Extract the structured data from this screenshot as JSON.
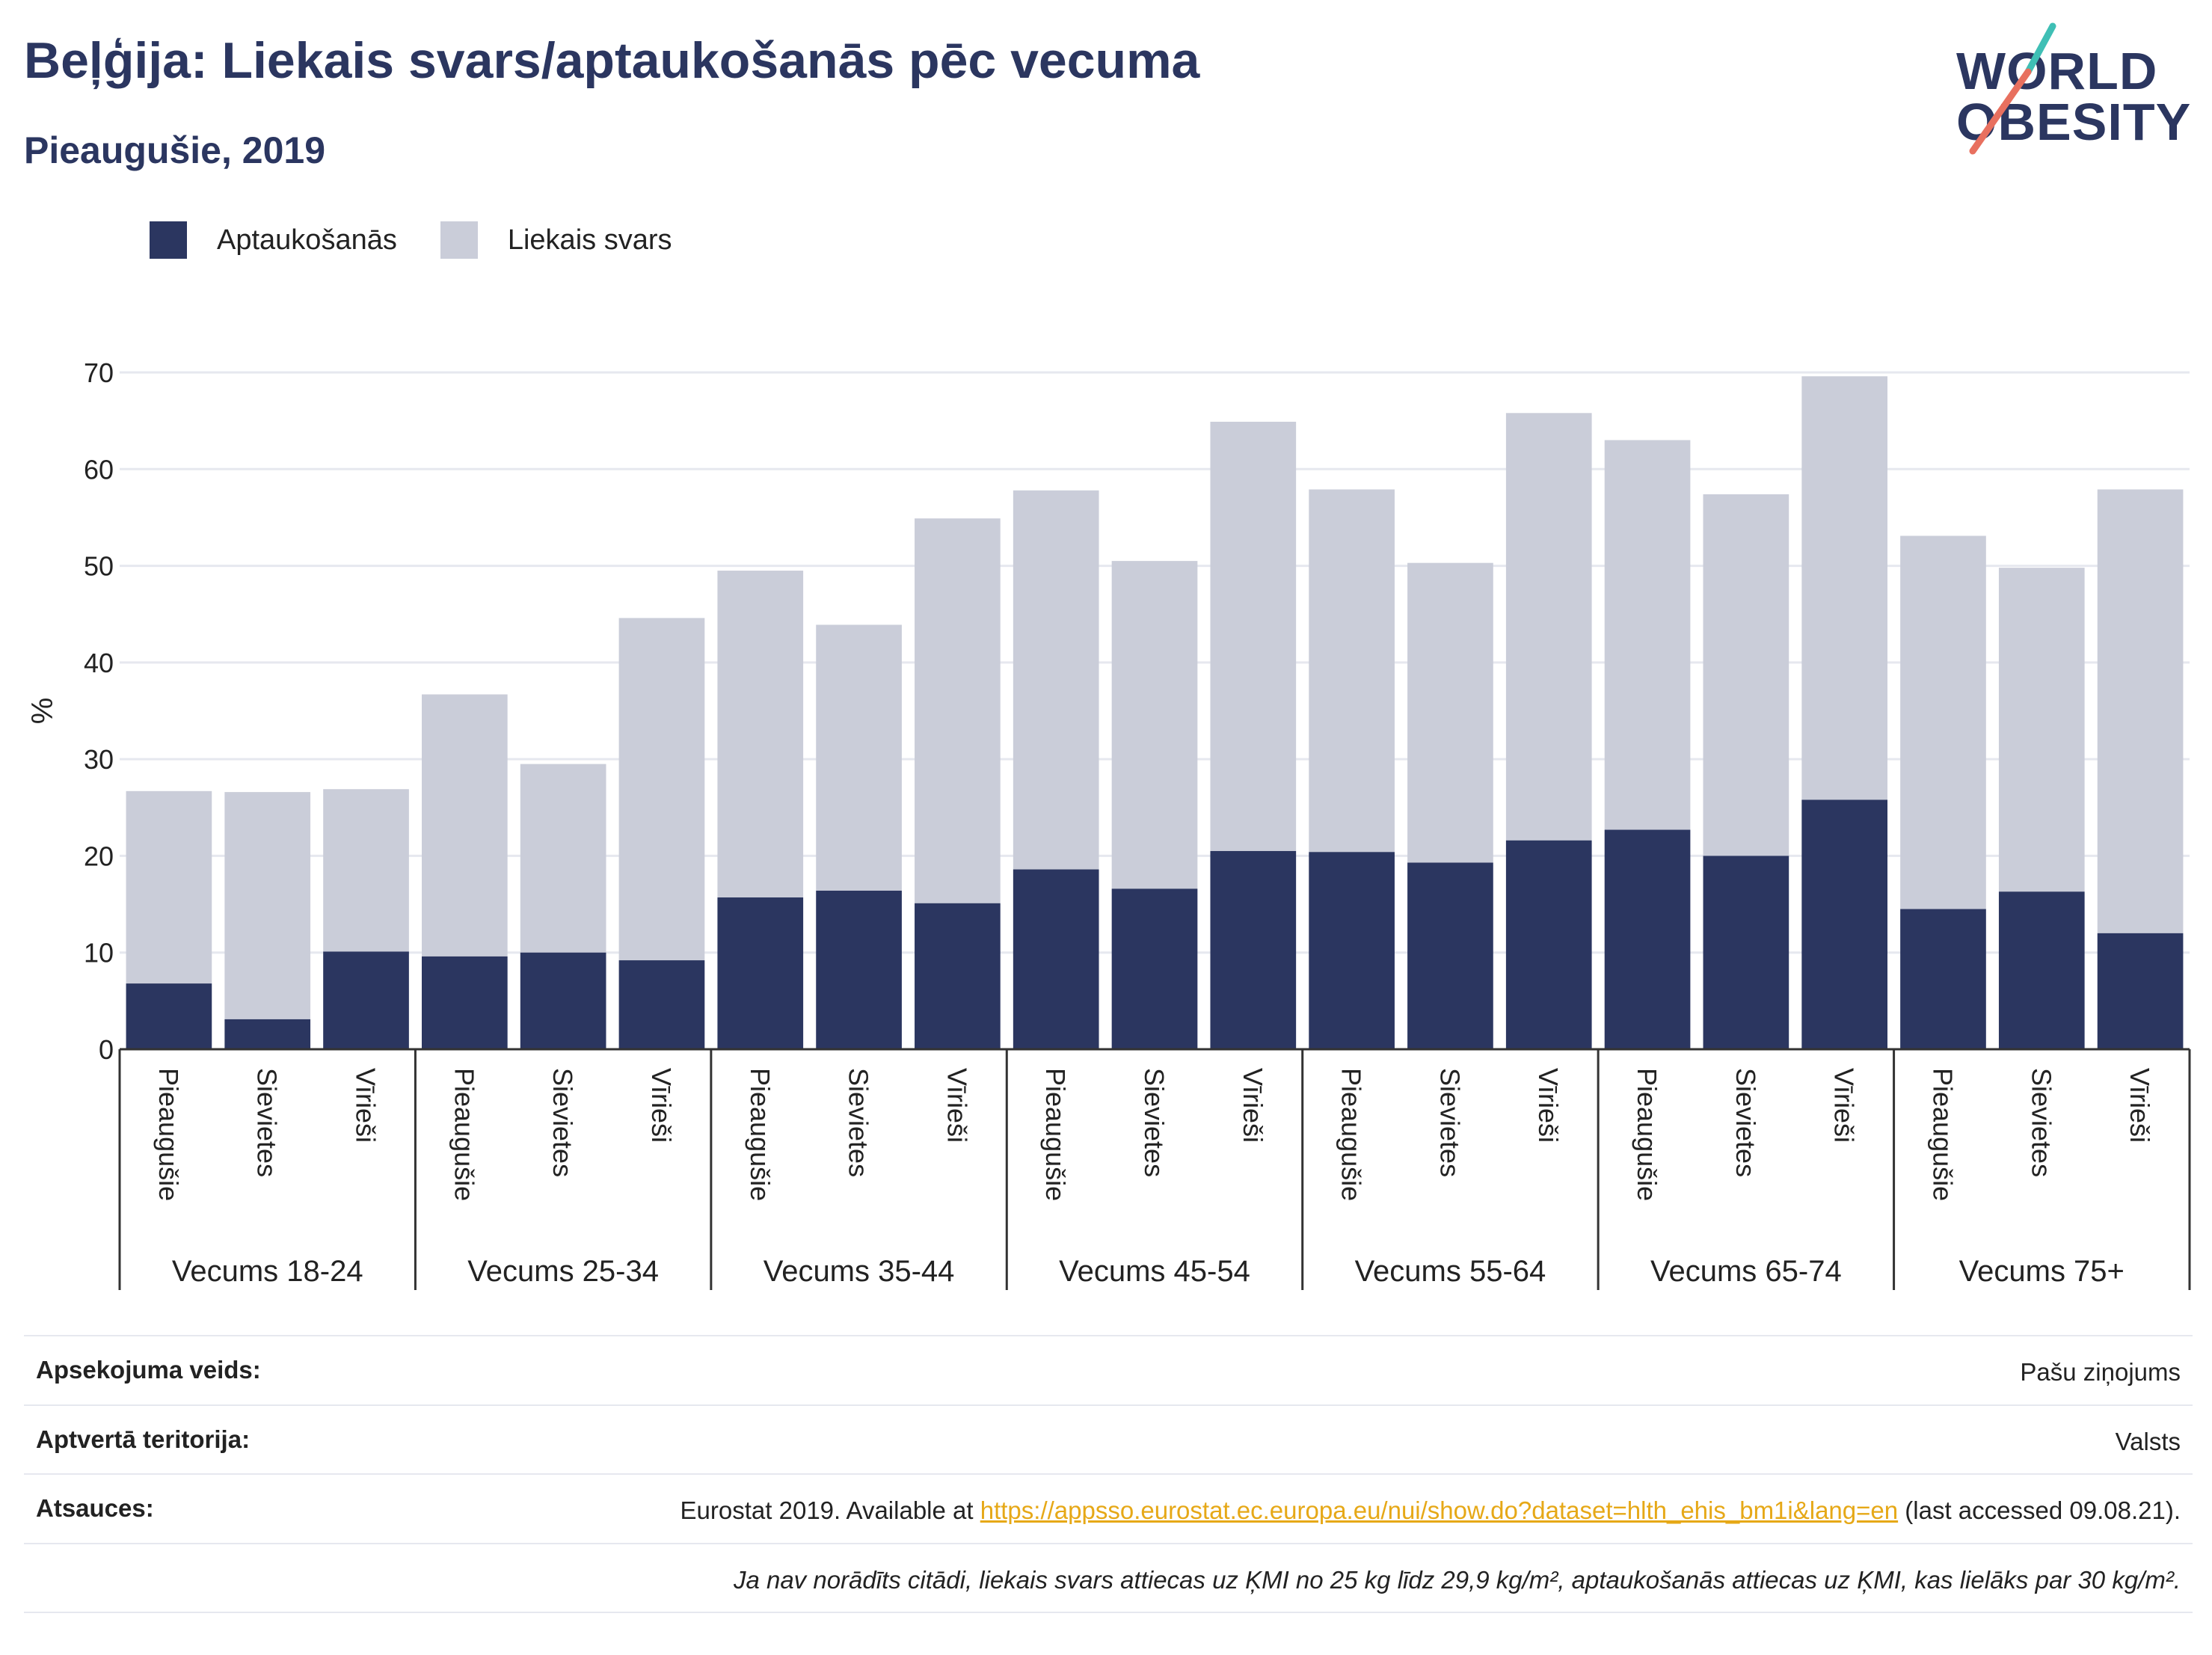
{
  "header": {
    "title": "Beļģija: Liekais svars/aptaukošanās pēc vecuma",
    "subtitle": "Pieaugušie, 2019"
  },
  "logo": {
    "line1": "WORLD",
    "line2": "OBESITY"
  },
  "legend": [
    {
      "label": "Aptaukošanās",
      "color": "#2b3660"
    },
    {
      "label": "Liekais svars",
      "color": "#cacdd9"
    }
  ],
  "chart_data": {
    "type": "bar",
    "stacked": true,
    "ylabel": "%",
    "ylim": [
      0,
      70
    ],
    "yticks": [
      0,
      10,
      20,
      30,
      40,
      50,
      60,
      70
    ],
    "grid": true,
    "legend_position": "top-left",
    "groups": [
      "Vecums 18-24",
      "Vecums 25-34",
      "Vecums 35-44",
      "Vecums 45-54",
      "Vecums 55-64",
      "Vecums 65-74",
      "Vecums 75+"
    ],
    "subcategories": [
      "Pieaugušie",
      "Sievietes",
      "Vīrieši"
    ],
    "series": [
      {
        "name": "Aptaukošanās",
        "color": "#2b3660",
        "values": [
          6.8,
          3.1,
          10.1,
          9.6,
          10.0,
          9.2,
          15.7,
          16.4,
          15.1,
          18.6,
          16.6,
          20.5,
          20.4,
          19.3,
          21.6,
          22.7,
          20.0,
          25.8,
          14.5,
          16.3,
          12.0
        ]
      },
      {
        "name": "Liekais svars",
        "color": "#cacdd9",
        "values": [
          19.9,
          23.5,
          16.8,
          27.1,
          19.5,
          35.4,
          33.8,
          27.5,
          39.8,
          39.2,
          33.9,
          44.4,
          37.5,
          31.0,
          44.2,
          40.3,
          37.4,
          43.8,
          38.6,
          33.5,
          45.9
        ]
      }
    ]
  },
  "info": {
    "survey_label": "Apsekojuma veids:",
    "survey_value": "Pašu ziņojums",
    "area_label": "Aptvertā teritorija:",
    "area_value": "Valsts",
    "refs_label": "Atsauces:",
    "refs_prefix": "Eurostat 2019. Available at ",
    "refs_link": "https://appsso.eurostat.ec.europa.eu/nui/show.do?dataset=hlth_ehis_bm1i&lang=en",
    "refs_suffix": " (last accessed 09.08.21).",
    "note": "Ja nav norādīts citādi, liekais svars attiecas uz ĶMI no 25 kg līdz 29,9 kg/m², aptaukošanās attiecas uz ĶMI, kas lielāks par 30 kg/m²."
  }
}
